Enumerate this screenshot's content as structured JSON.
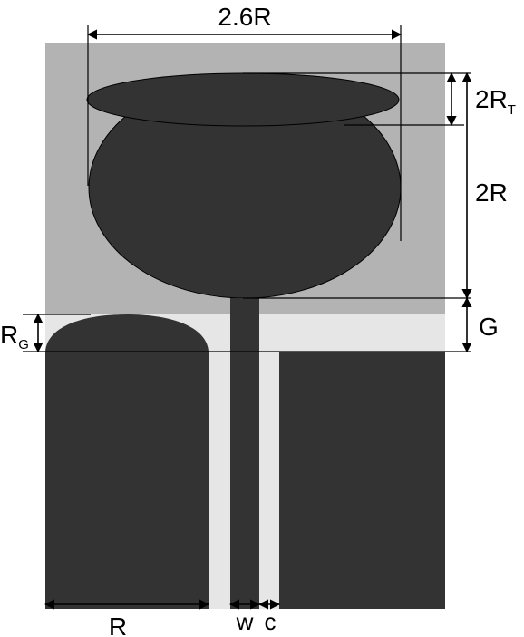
{
  "diagram": {
    "labels": {
      "width_total": "2.6R",
      "top_cap_main": "2R",
      "top_cap_sub": "T",
      "patch_height": "2R",
      "gap": "G",
      "ground_radius_main": "R",
      "ground_radius_sub": "G",
      "ground_width": "R",
      "strip_width": "w",
      "slot_width": "c"
    },
    "colors": {
      "substrate": "#b3b3b3",
      "slot": "#e6e6e6",
      "metal": "#333333",
      "line": "#000000"
    }
  }
}
